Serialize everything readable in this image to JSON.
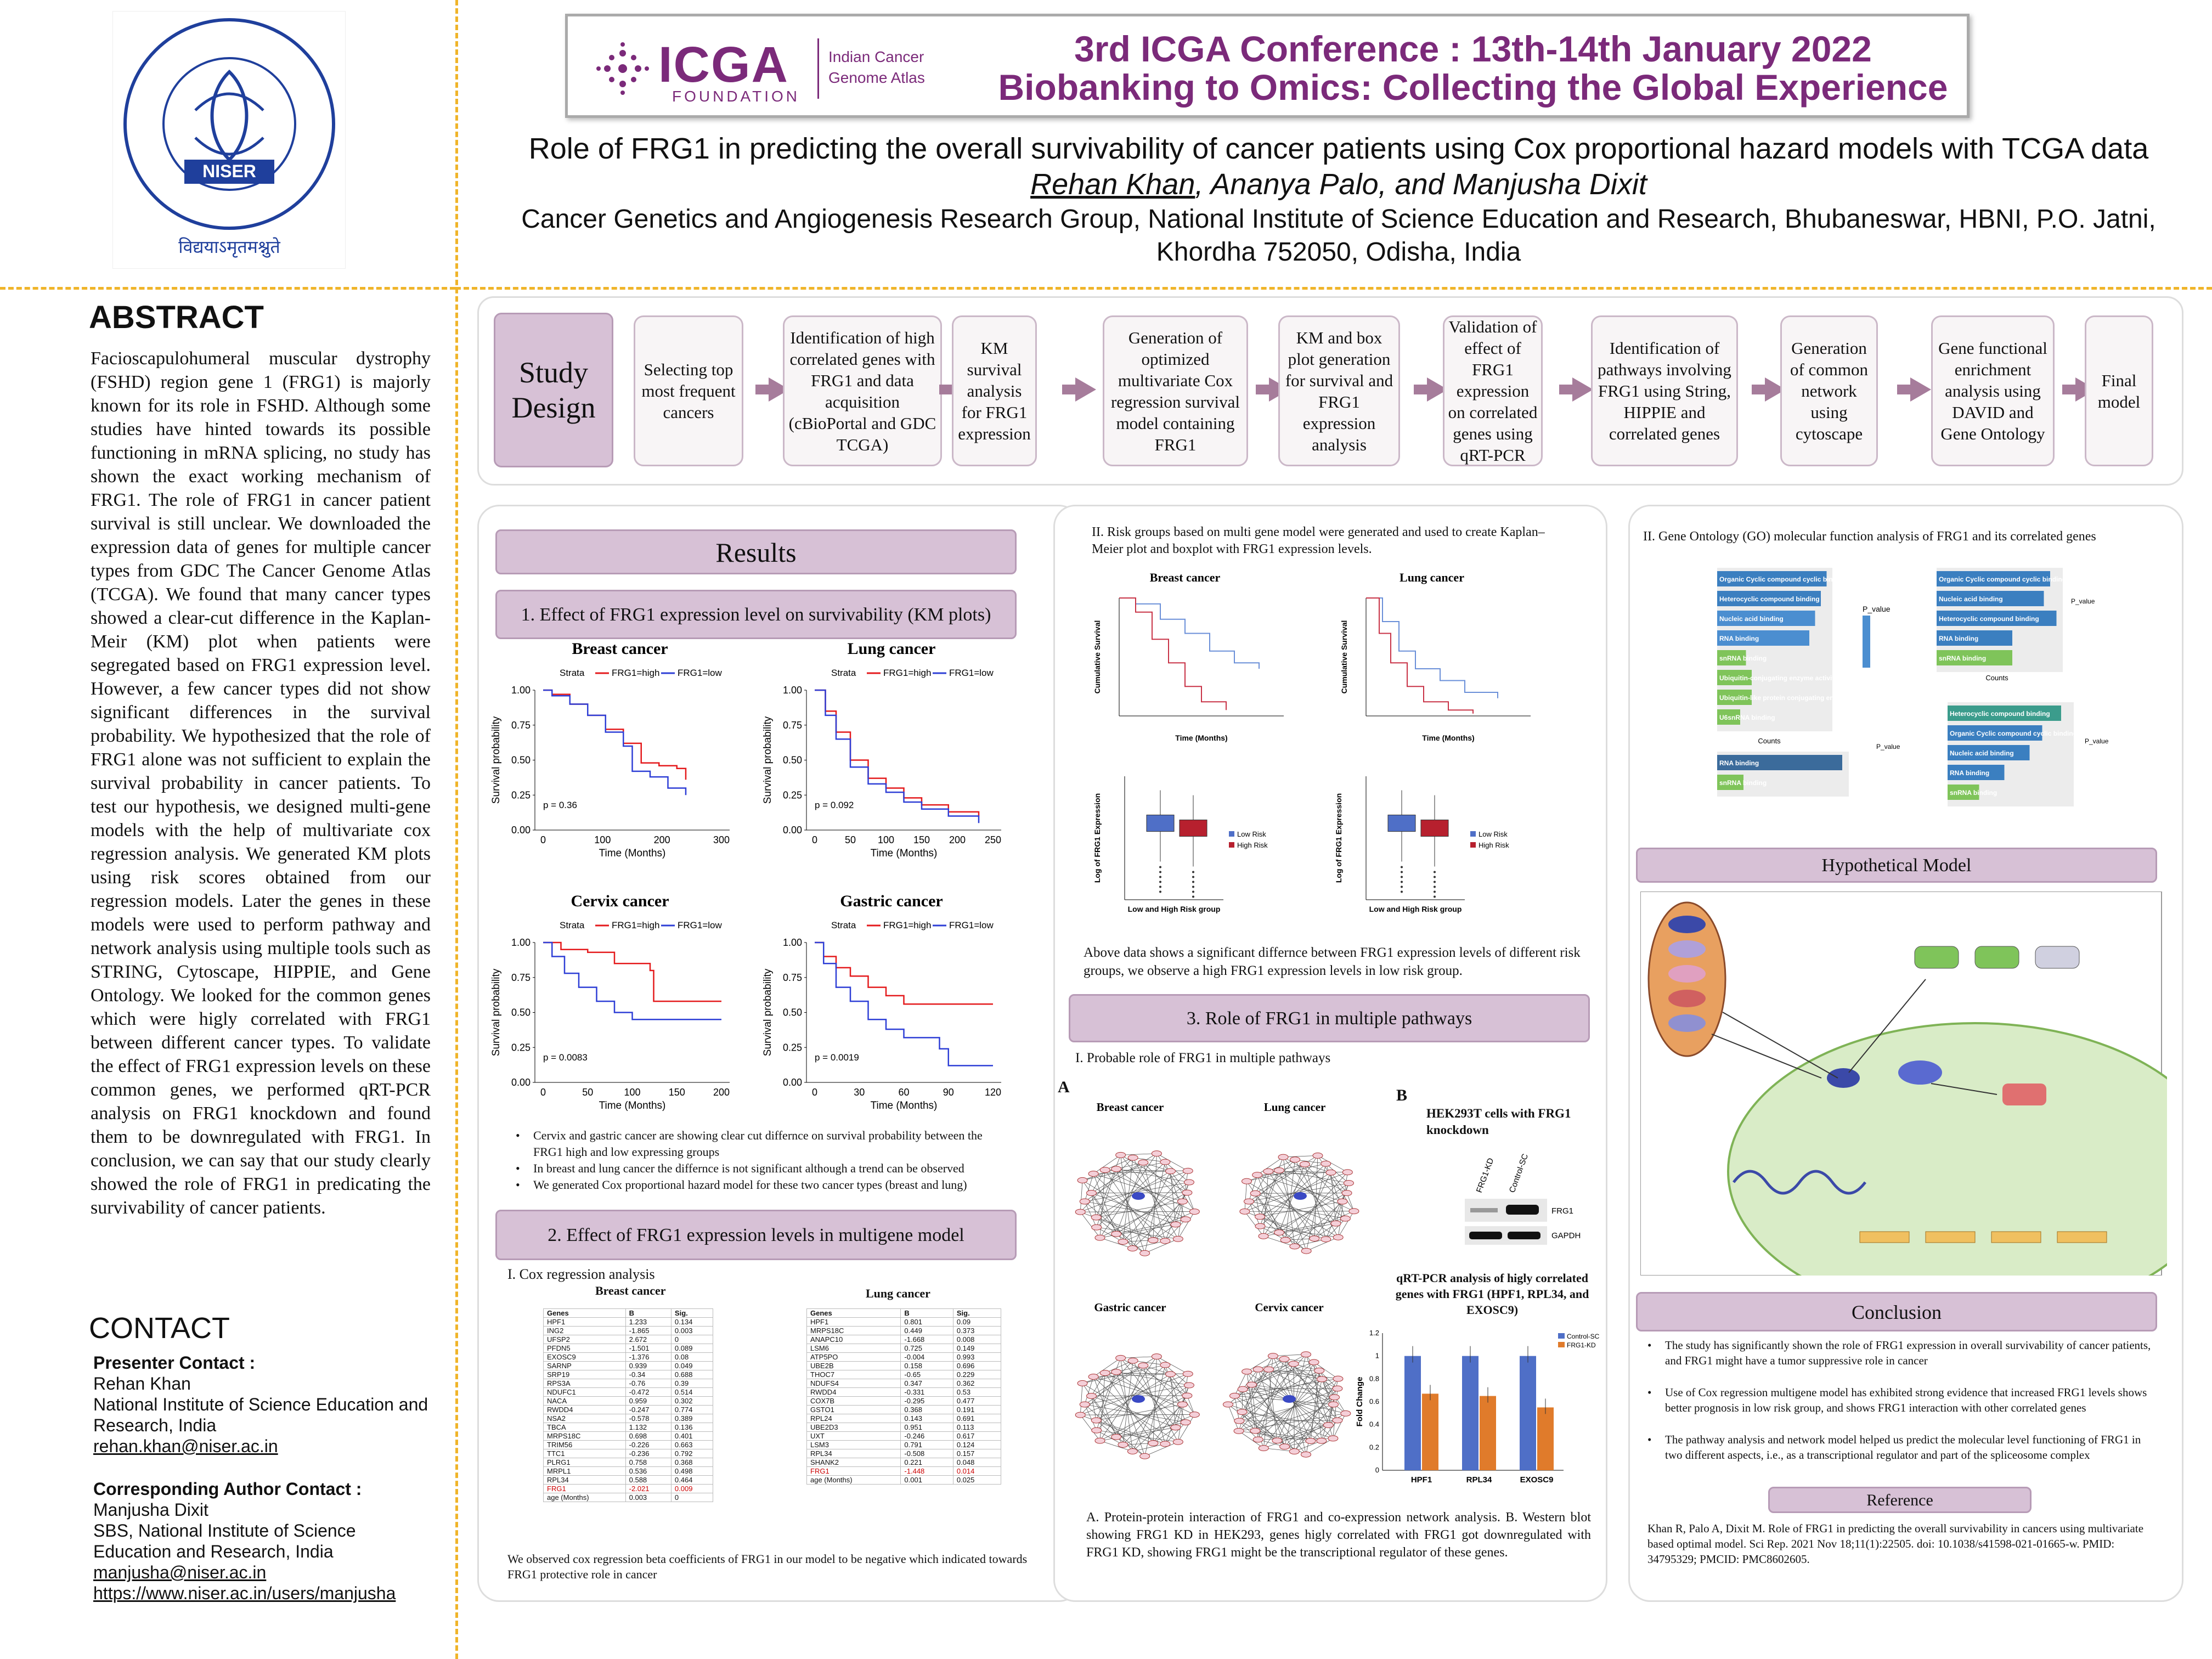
{
  "header": {
    "logo_left_text": "NISER",
    "logo_left_top": "राष्ट्रीय विज्ञान शिक्षा एवं अनुसंधान संस्थान",
    "logo_left_bottom": "विद्ययाऽमृतमश्नुते",
    "icga_logo": "ICGA",
    "icga_foundation": "FOUNDATION",
    "icga_side": "Indian Cancer Genome Atlas",
    "conf_line1": "3rd ICGA Conference : 13th-14th January 2022",
    "conf_line2": "Biobanking to Omics: Collecting the Global Experience",
    "title": "Role of FRG1 in predicting the overall survivability of cancer patients using Cox proportional hazard models with TCGA data",
    "presenter_underlined": "Rehan Khan",
    "authors_rest": ", Ananya Palo, and Manjusha Dixit",
    "affiliation": "Cancer Genetics and Angiogenesis Research Group, National Institute of Science Education and Research, Bhubaneswar, HBNI, P.O. Jatni, Khordha 752050, Odisha, India"
  },
  "abstract": {
    "heading": "ABSTRACT",
    "text": "Facioscapulohumeral muscular dystrophy (FSHD) region gene 1 (FRG1) is majorly known for its role in FSHD. Although some studies have hinted towards its possible functioning in mRNA splicing, no study has shown the exact working mechanism of FRG1. The role of FRG1 in cancer patient survival is still unclear. We downloaded the expression data of genes for multiple cancer types from GDC The Cancer Genome Atlas (TCGA). We found that many cancer types showed a clear-cut difference in the Kaplan-Meir (KM) plot when patients were segregated based on FRG1 expression level. However, a few cancer types did not show significant differences in the survival probability. We hypothesized that the role of FRG1 alone was not sufficient to explain the survival probability in cancer patients. To test our hypothesis, we designed multi-gene models with the help of multivariate cox regression analysis. We generated KM plots using risk scores obtained from our regression models. Later the genes in these models were used to perform pathway and network analysis using multiple tools such as STRING, Cytoscape, HIPPIE, and Gene Ontology. We looked for the common genes which were higly correlated with FRG1 between different cancer types. To validate the effect of FRG1 expression levels on these common genes, we performed qRT-PCR analysis on FRG1 knockdown and found them to be downregulated with FRG1. In conclusion, we can say that our study clearly showed the role of FRG1 in predicating the survivability of cancer patients."
  },
  "contact": {
    "heading": "CONTACT",
    "presenter_label": "Presenter Contact :",
    "presenter_name": "Rehan Khan",
    "presenter_inst": "National Institute of Science Education and Research, India",
    "presenter_email": "rehan.khan@niser.ac.in",
    "corr_label": "Corresponding Author Contact :",
    "corr_name": "Manjusha Dixit",
    "corr_inst": "SBS, National Institute of Science Education and Research, India",
    "corr_email": "manjusha@niser.ac.in",
    "corr_url": "https://www.niser.ac.in/users/manjusha"
  },
  "study_design": {
    "label": "Study Design",
    "steps": [
      "Selecting top most frequent cancers",
      "Identification of high correlated genes with FRG1 and data acquisition (cBioPortal and GDC TCGA)",
      "KM survival analysis for FRG1 expression",
      "Generation of optimized multivariate Cox regression survival model containing FRG1",
      "KM and box plot generation for survival and FRG1 expression analysis",
      "Validation of effect of FRG1 expression on correlated genes using qRT-PCR",
      "Identification of pathways involving FRG1 using String, HIPPIE and correlated genes",
      "Generation of common network using cytoscape",
      "Gene functional enrichment analysis using DAVID and Gene Ontology",
      "Final model"
    ]
  },
  "results": {
    "heading": "Results",
    "sec1": "1. Effect of FRG1 expression level on survivability (KM plots)",
    "strata": "Strata",
    "high": "FRG1=high",
    "low": "FRG1=low",
    "ylabel": "Survival probability",
    "xlabel": "Time (Months)",
    "bullets": [
      "Cervix and gastric cancer are showing clear cut differnce on survival probability between the FRG1 high and low expressing  groups",
      "In breast and lung cancer the differnce is not significant although a trend can be observed",
      "We generated Cox proportional hazard model for these two cancer types (breast and lung)"
    ],
    "sec2": "2. Effect of FRG1 expression levels in multigene model",
    "cox_label": "I. Cox regression analysis",
    "breast_title": "Breast cancer",
    "lung_title": "Lung cancer",
    "table_headers": [
      "Genes",
      "B",
      "Sig."
    ],
    "breast_rows": [
      [
        "HPF1",
        "1.233",
        "0.134"
      ],
      [
        "ING2",
        "-1.865",
        "0.003"
      ],
      [
        "UFSP2",
        "2.672",
        "0"
      ],
      [
        "PFDN5",
        "-1.501",
        "0.089"
      ],
      [
        "EXOSC9",
        "-1.376",
        "0.08"
      ],
      [
        "SARNP",
        "0.939",
        "0.049"
      ],
      [
        "SRP19",
        "-0.34",
        "0.688"
      ],
      [
        "RPS3A",
        "-0.76",
        "0.39"
      ],
      [
        "NDUFC1",
        "-0.472",
        "0.514"
      ],
      [
        "NACA",
        "0.959",
        "0.302"
      ],
      [
        "RWDD4",
        "-0.247",
        "0.774"
      ],
      [
        "NSA2",
        "-0.578",
        "0.389"
      ],
      [
        "TBCA",
        "1.132",
        "0.136"
      ],
      [
        "MRPS18C",
        "0.698",
        "0.401"
      ],
      [
        "TRIM56",
        "-0.226",
        "0.663"
      ],
      [
        "TTC1",
        "-0.236",
        "0.792"
      ],
      [
        "PLRG1",
        "0.758",
        "0.368"
      ],
      [
        "MRPL1",
        "0.536",
        "0.498"
      ],
      [
        "RPL34",
        "0.588",
        "0.464"
      ],
      [
        "FRG1",
        "-2.021",
        "0.009"
      ],
      [
        "age (Months)",
        "0.003",
        "0"
      ]
    ],
    "lung_rows": [
      [
        "HPF1",
        "0.801",
        "0.09"
      ],
      [
        "MRPS18C",
        "0.449",
        "0.373"
      ],
      [
        "ANAPC10",
        "-1.668",
        "0.008"
      ],
      [
        "LSM6",
        "0.725",
        "0.149"
      ],
      [
        "ATP5PO",
        "-0.004",
        "0.993"
      ],
      [
        "UBE2B",
        "0.158",
        "0.696"
      ],
      [
        "THOC7",
        "-0.65",
        "0.229"
      ],
      [
        "NDUFS4",
        "0.347",
        "0.362"
      ],
      [
        "RWDD4",
        "-0.331",
        "0.53"
      ],
      [
        "COX7B",
        "-0.295",
        "0.477"
      ],
      [
        "GSTO1",
        "0.368",
        "0.191"
      ],
      [
        "RPL24",
        "0.143",
        "0.691"
      ],
      [
        "UBE2D3",
        "0.951",
        "0.113"
      ],
      [
        "UXT",
        "-0.246",
        "0.617"
      ],
      [
        "LSM3",
        "0.791",
        "0.124"
      ],
      [
        "RPL34",
        "-0.508",
        "0.157"
      ],
      [
        "SHANK2",
        "0.221",
        "0.048"
      ],
      [
        "FRG1",
        "-1.448",
        "0.014"
      ],
      [
        "age (Months)",
        "0.001",
        "0.025"
      ]
    ],
    "sec2_note": "We observed cox regression beta coefficients of FRG1 in our model to be negative which indicated towards FRG1 protective role in cancer"
  },
  "km_plots": [
    {
      "title": "Breast cancer",
      "p": "p = 0.36",
      "xticks": [
        "0",
        "100",
        "200",
        "300"
      ],
      "xmax": 300
    },
    {
      "title": "Lung cancer",
      "p": "p = 0.092",
      "xticks": [
        "0",
        "50",
        "100",
        "150",
        "200",
        "250"
      ],
      "xmax": 250
    },
    {
      "title": "Cervix cancer",
      "p": "p = 0.0083",
      "xticks": [
        "0",
        "50",
        "100",
        "150",
        "200"
      ],
      "xmax": 200
    },
    {
      "title": "Gastric cancer",
      "p": "p = 0.0019",
      "xticks": [
        "0",
        "30",
        "60",
        "90",
        "120"
      ],
      "xmax": 120
    }
  ],
  "yticks": [
    "0.00",
    "0.25",
    "0.50",
    "0.75",
    "1.00"
  ],
  "middle": {
    "risk_text": "II. Risk groups based on multi gene model were generated and used to create Kaplan–Meier plot and boxplot with FRG1 expression levels.",
    "breast": "Breast cancer",
    "lung": "Lung cancer",
    "cum_survival": "Cumulative Survival",
    "time": "Time (Months)",
    "box_ylabel": "Log of FRG1 Expression",
    "box_xlabel": "Low and High Risk group",
    "low_risk": "Low Risk",
    "high_risk": "High Risk",
    "risk_note": "Above data shows a significant differnce between FRG1 expression levels of different risk groups, we observe a high FRG1 expression levels in low risk group.",
    "sec3": "3. Role of FRG1 in multiple pathways",
    "sec3_sub": "I. Probable role of FRG1 in multiple pathways",
    "panel_a": "A",
    "panel_b": "B",
    "nets": [
      "Breast cancer",
      "Lung cancer",
      "Gastric cancer",
      "Cervix cancer"
    ],
    "wb_title": "HEK293T cells with FRG1 knockdown",
    "wb_lanes": [
      "FRG1-KD",
      "Control-SC"
    ],
    "wb_bands": [
      "FRG1",
      "GAPDH"
    ],
    "qpcr_title": "qRT-PCR analysis of higly correlated genes with FRG1 (HPF1, RPL34, and EXOSC9)",
    "qpcr_ylabel": "Fold Change",
    "qpcr_legend": [
      "Control-SC",
      "FRG1-KD"
    ],
    "qpcr_genes": [
      "HPF1",
      "RPL34",
      "EXOSC9"
    ],
    "qpcr_control": [
      1.0,
      1.0,
      1.0
    ],
    "qpcr_kd": [
      0.67,
      0.65,
      0.55
    ],
    "caption": "A. Protein-protein interaction of FRG1 and co-expression network analysis. B. Western blot showing FRG1 KD in HEK293, genes higly correlated with FRG1 got downregulated with FRG1 KD, showing FRG1 might be the transcriptional regulator of these genes."
  },
  "right": {
    "go_title": "II. Gene Ontology (GO) molecular function analysis of FRG1 and its correlated genes",
    "go_a_terms": [
      "Organic Cyclic compound cyclic binding",
      "Heterocyclic compound binding",
      "Nucleic acid binding",
      "RNA binding",
      "snRNA binding",
      "Ubiquitin-conjugating enzyme activity",
      "Ubiquitin-like protein conjugating enzyme activity",
      "U6snRNA binding"
    ],
    "go_b_terms": [
      "Organic Cyclic compound cyclic binding",
      "Nucleic acid binding",
      "Heterocyclic compound binding",
      "RNA binding",
      "snRNA binding"
    ],
    "go_c_terms": [
      "RNA binding",
      "snRNA binding"
    ],
    "go_d_terms": [
      "Heterocyclic compound binding",
      "Organic Cyclic compound cyclic binding",
      "Nucleic acid binding",
      "RNA binding",
      "snRNA binding"
    ],
    "pvalue": "P_value",
    "counts": "Counts",
    "hyp_heading": "Hypothetical Model",
    "conclusion_heading": "Conclusion",
    "conclusions": [
      "The study has significantly shown the role of  FRG1 expression in overall survivability of cancer patients, and FRG1 might have a tumor suppressive role in cancer",
      "Use of Cox regression multigene model has exhibited strong evidence that increased FRG1 levels shows better prognosis in low risk group, and shows FRG1 interaction with other correlated genes",
      "The pathway analysis and network model helped us predict the molecular level functioning of FRG1 in two different aspects, i.e., as a transcriptional regulator and part of the spliceosome complex"
    ],
    "reference_heading": "Reference",
    "reference": "Khan R, Palo A, Dixit M. Role of FRG1 in predicting the overall survivability in cancers using multivariate based optimal model. Sci Rep. 2021 Nov 18;11(1):22505. doi: 10.1038/s41598-021-01665-w. PMID: 34795329; PMCID: PMC8602605."
  },
  "colors": {
    "high": "#e41a1c",
    "low": "#2e3fd6",
    "accent": "#d7c1d6",
    "dash": "#f0b429",
    "bar_ctrl": "#4f6fc7",
    "bar_kd": "#e07b2b"
  }
}
